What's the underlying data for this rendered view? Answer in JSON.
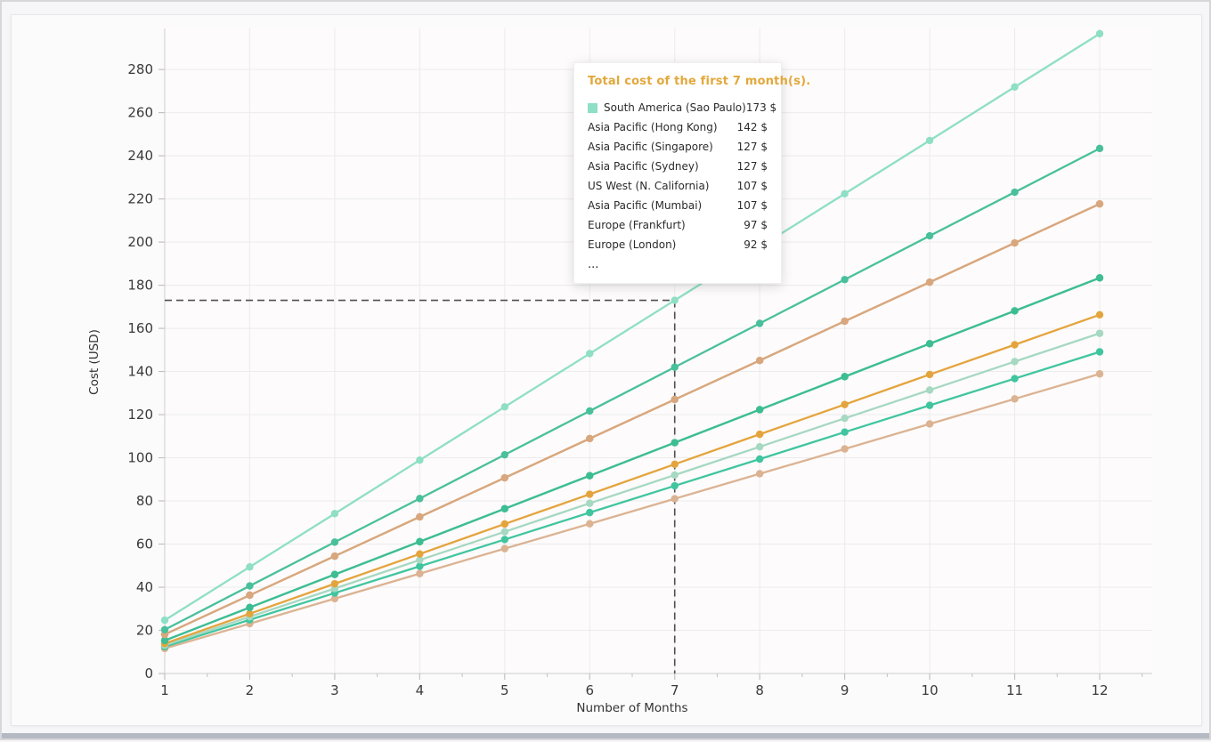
{
  "window": {
    "background_color": "#f6f5f7",
    "card_color": "#fcfbfc",
    "bottom_bar_color": "#b4b9c3"
  },
  "chart_data": {
    "type": "line",
    "title": "",
    "xlabel": "Number of Months",
    "ylabel": "Cost (USD)",
    "x": [
      1,
      2,
      3,
      4,
      5,
      6,
      7,
      8,
      9,
      10,
      11,
      12
    ],
    "xticks": [
      1,
      2,
      3,
      4,
      5,
      6,
      7,
      8,
      9,
      10,
      11,
      12
    ],
    "yticks": [
      0,
      20,
      40,
      60,
      80,
      100,
      120,
      140,
      160,
      180,
      200,
      220,
      240,
      260,
      280
    ],
    "xlim": [
      1,
      12
    ],
    "ylim": [
      0,
      299
    ],
    "grid": true,
    "legend_position": "tooltip-overlay",
    "series": [
      {
        "name": "South America (Sao Paulo)",
        "slug": "sao-paulo",
        "color": "#8edfc5",
        "values": [
          24.7,
          49.4,
          74.1,
          98.9,
          123.6,
          148.3,
          173,
          197.7,
          222.4,
          247.1,
          271.9,
          296.6
        ]
      },
      {
        "name": "Asia Pacific (Hong Kong)",
        "slug": "hong-kong",
        "color": "#49c09b",
        "values": [
          20.3,
          40.6,
          60.9,
          81.1,
          101.4,
          121.7,
          142,
          162.3,
          182.6,
          202.9,
          223.1,
          243.4
        ]
      },
      {
        "name": "Asia Pacific (Singapore)",
        "slug": "singapore",
        "color": "#d8a77e",
        "values": [
          18.1,
          36.3,
          54.4,
          72.6,
          90.7,
          108.9,
          127,
          145.1,
          163.3,
          181.4,
          199.6,
          217.7
        ]
      },
      {
        "name": "Asia Pacific (Sydney)",
        "slug": "sydney",
        "color": "#d8ad87",
        "values": [
          18.1,
          36.3,
          54.4,
          72.6,
          90.7,
          108.9,
          127,
          145.1,
          163.3,
          181.4,
          199.6,
          217.7
        ]
      },
      {
        "name": "US West (N. California)",
        "slug": "us-west-n-california",
        "color": "#3dbd93",
        "values": [
          15.3,
          30.6,
          45.9,
          61.1,
          76.4,
          91.7,
          107,
          122.3,
          137.6,
          152.9,
          168.1,
          183.4
        ]
      },
      {
        "name": "Asia Pacific (Mumbai)",
        "slug": "mumbai",
        "color": "#57c5a4",
        "values": [
          15.3,
          30.6,
          45.9,
          61.1,
          76.4,
          91.7,
          107,
          122.3,
          137.6,
          152.9,
          168.1,
          183.4
        ]
      },
      {
        "name": "Europe (Frankfurt)",
        "slug": "frankfurt",
        "color": "#e4a43d",
        "values": [
          13.9,
          27.7,
          41.6,
          55.4,
          69.3,
          83.1,
          97,
          110.9,
          124.7,
          138.6,
          152.4,
          166.3
        ]
      },
      {
        "name": "Europe (London)",
        "slug": "london",
        "color": "#a6d8c2",
        "values": [
          13.1,
          26.3,
          39.4,
          52.6,
          65.7,
          78.9,
          92,
          105.1,
          118.3,
          131.4,
          144.6,
          157.7
        ]
      },
      {
        "name": "",
        "slug": "hidden-1",
        "color": "#40c59f",
        "values": [
          12.4,
          24.9,
          37.3,
          49.7,
          62.1,
          74.6,
          87,
          99.4,
          111.9,
          124.3,
          136.7,
          149.1
        ]
      },
      {
        "name": "",
        "slug": "hidden-2",
        "color": "#dbb393",
        "values": [
          11.6,
          23.1,
          34.7,
          46.3,
          57.9,
          69.4,
          81,
          92.6,
          104.1,
          115.7,
          127.3,
          138.9
        ]
      }
    ],
    "hover_highlight": {
      "series": "South America (Sao Paulo)",
      "x": 7,
      "y": 173
    }
  },
  "tooltip": {
    "title": "Total cost of the first 7 month(s).",
    "title_color": "#e2a83b",
    "rows": [
      {
        "label": "South America (Sao Paulo)",
        "value": "173 $",
        "marker_color": "#8edfc5"
      },
      {
        "label": "Asia Pacific (Hong Kong)",
        "value": "142 $"
      },
      {
        "label": "Asia Pacific (Singapore)",
        "value": "127 $"
      },
      {
        "label": "Asia Pacific (Sydney)",
        "value": "127 $"
      },
      {
        "label": "US West (N. California)",
        "value": "107 $"
      },
      {
        "label": "Asia Pacific (Mumbai)",
        "value": "107 $"
      },
      {
        "label": "Europe (Frankfurt)",
        "value": "97 $"
      },
      {
        "label": "Europe (London)",
        "value": "92 $"
      }
    ],
    "overflow": "..."
  },
  "colors": {
    "grid": "#ececec",
    "axis": "#d6d6d6",
    "tick": "#c2c2c2",
    "tick_label": "#3a3a3a",
    "crosshair": "#4f4f4f"
  }
}
